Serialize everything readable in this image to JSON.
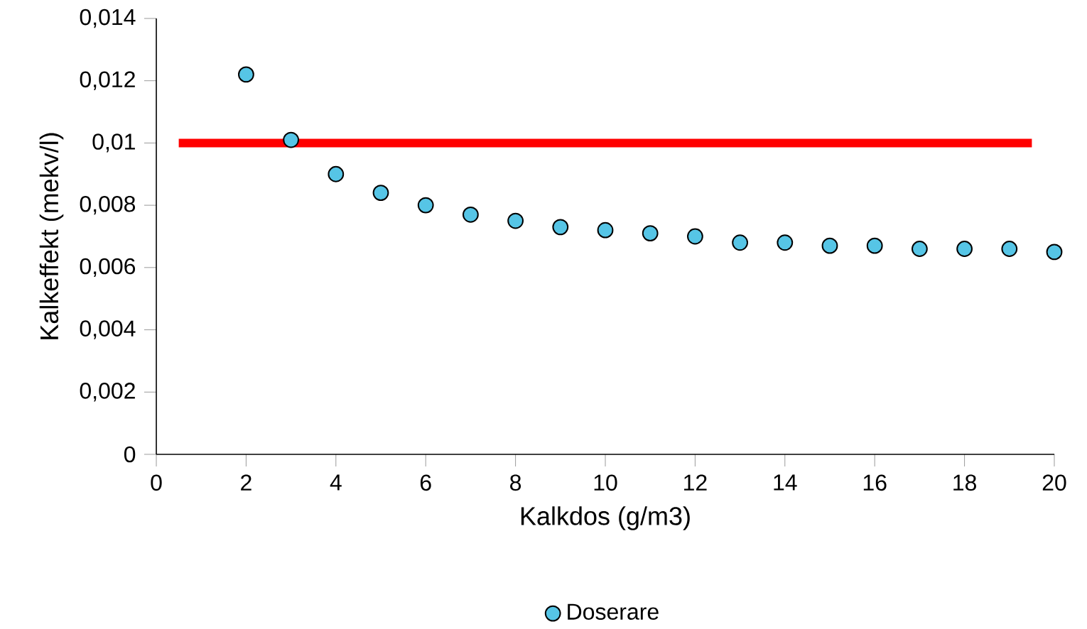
{
  "chart_data": {
    "type": "scatter",
    "xlabel": "Kalkdos (g/m3)",
    "ylabel": "Kalkeffekt (mekv/l)",
    "xlim": [
      0,
      20
    ],
    "xticks": [
      0,
      2,
      4,
      6,
      8,
      10,
      12,
      14,
      16,
      18,
      20
    ],
    "ylim": [
      0,
      0.014
    ],
    "yticks": [
      {
        "value": 0,
        "label": "0"
      },
      {
        "value": 0.002,
        "label": "0,002"
      },
      {
        "value": 0.004,
        "label": "0,004"
      },
      {
        "value": 0.006,
        "label": "0,006"
      },
      {
        "value": 0.008,
        "label": "0,008"
      },
      {
        "value": 0.01,
        "label": "0,01"
      },
      {
        "value": 0.012,
        "label": "0,012"
      },
      {
        "value": 0.014,
        "label": "0,014"
      }
    ],
    "legend": "bottom",
    "grid": false,
    "series": [
      {
        "type": "line",
        "marker": "none",
        "color": "#ff0000",
        "x": [
          0.5,
          19.5
        ],
        "values": [
          0.01,
          0.01
        ]
      },
      {
        "name": "Doserare",
        "marker": "circle",
        "color": "#56c5e6",
        "x": [
          2,
          3,
          4,
          5,
          6,
          7,
          8,
          9,
          10,
          11,
          12,
          13,
          14,
          15,
          16,
          17,
          18,
          19,
          20
        ],
        "values": [
          0.0122,
          0.0101,
          0.009,
          0.0084,
          0.008,
          0.0077,
          0.0075,
          0.0073,
          0.0072,
          0.0071,
          0.007,
          0.0068,
          0.0068,
          0.0067,
          0.0067,
          0.0066,
          0.0066,
          0.0066,
          0.0065
        ]
      }
    ]
  }
}
